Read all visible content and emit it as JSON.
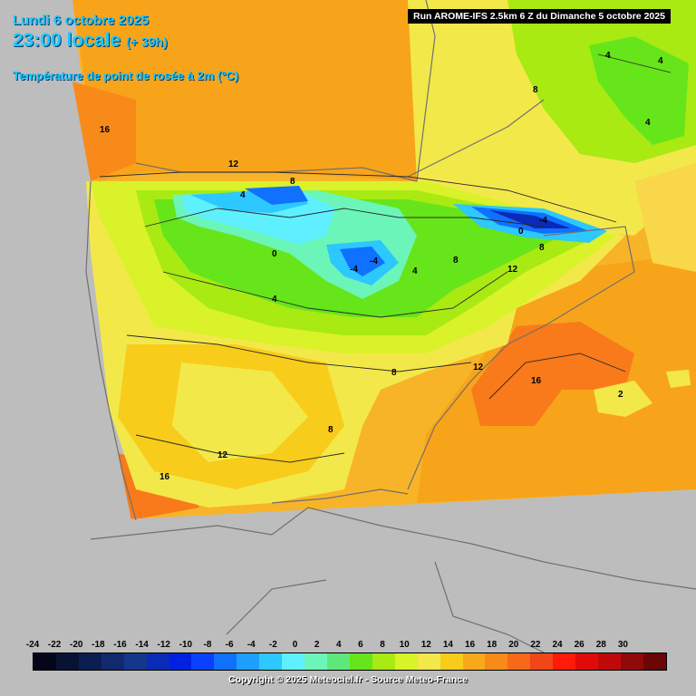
{
  "header": {
    "date": "Lundi 6 octobre 2025",
    "time": "23:00 locale",
    "lead": "(+ 39h)",
    "parameter": "Température de point de rosée à 2m (°C)",
    "run": "Run AROME-IFS 2.5km 6 Z du Dimanche 5 octobre 2025"
  },
  "contour_labels": [
    "16",
    "12",
    "8",
    "4",
    "0",
    "4",
    "-4",
    "-4",
    "4",
    "0",
    "-4",
    "8",
    "12",
    "16",
    "8",
    "12",
    "16",
    "4",
    "4",
    "4",
    "8",
    "8",
    "12",
    "2",
    "8"
  ],
  "legend": {
    "values": [
      "-24",
      "-22",
      "-20",
      "-18",
      "-16",
      "-14",
      "-12",
      "-10",
      "-8",
      "-6",
      "-4",
      "-2",
      "0",
      "2",
      "4",
      "6",
      "8",
      "10",
      "12",
      "14",
      "16",
      "18",
      "20",
      "22",
      "24",
      "26",
      "28",
      "30"
    ],
    "colors": [
      "#04061a",
      "#081233",
      "#0c1d52",
      "#112a6e",
      "#14378c",
      "#0a2ab8",
      "#0022e0",
      "#0a40ff",
      "#1070ff",
      "#1e9fff",
      "#2cc8ff",
      "#5ef0ff",
      "#6cf5b8",
      "#5fe87a",
      "#66e51a",
      "#a8ea12",
      "#d9f22a",
      "#f3e84a",
      "#f8cc1a",
      "#f8a91a",
      "#f88a1a",
      "#f8681a",
      "#f0461a",
      "#ff1a0a",
      "#e00a0a",
      "#c00a0a",
      "#900a0a",
      "#6a0606"
    ]
  },
  "copyright": "Copyright © 2025 Meteociel.fr - Source Meteo-France"
}
